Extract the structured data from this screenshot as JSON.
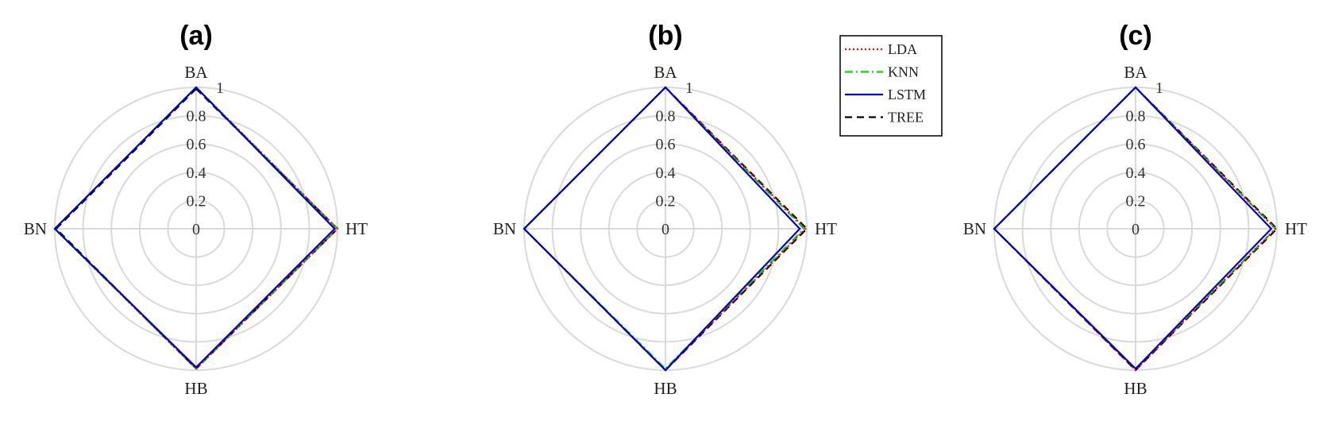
{
  "chart_data": [
    {
      "type": "radar",
      "title": "(a)",
      "axes": [
        "BA",
        "HT",
        "HB",
        "BN"
      ],
      "radial_ticks": [
        "0",
        "0.2",
        "0.4",
        "0.6",
        "0.8",
        "1"
      ],
      "rlim": [
        0,
        1
      ],
      "series": [
        {
          "name": "LDA",
          "values": [
            1.0,
            1.0,
            0.99,
            1.0
          ]
        },
        {
          "name": "KNN",
          "values": [
            1.0,
            1.0,
            0.99,
            1.0
          ]
        },
        {
          "name": "LSTM",
          "values": [
            1.0,
            0.98,
            0.98,
            1.0
          ]
        },
        {
          "name": "TREE",
          "values": [
            0.99,
            1.0,
            0.99,
            0.99
          ]
        }
      ]
    },
    {
      "type": "radar",
      "title": "(b)",
      "axes": [
        "BA",
        "HT",
        "HB",
        "BN"
      ],
      "radial_ticks": [
        "0",
        "0.2",
        "0.4",
        "0.6",
        "0.8",
        "1"
      ],
      "rlim": [
        0,
        1
      ],
      "series": [
        {
          "name": "LDA",
          "values": [
            1.0,
            0.99,
            1.0,
            1.0
          ]
        },
        {
          "name": "KNN",
          "values": [
            1.0,
            0.98,
            0.99,
            1.0
          ]
        },
        {
          "name": "LSTM",
          "values": [
            1.0,
            0.95,
            1.0,
            1.0
          ]
        },
        {
          "name": "TREE",
          "values": [
            1.0,
            1.0,
            1.0,
            1.0
          ]
        }
      ]
    },
    {
      "type": "radar",
      "title": "(c)",
      "axes": [
        "BA",
        "HT",
        "HB",
        "BN"
      ],
      "radial_ticks": [
        "0",
        "0.2",
        "0.4",
        "0.6",
        "0.8",
        "1"
      ],
      "rlim": [
        0,
        1
      ],
      "series": [
        {
          "name": "LDA",
          "values": [
            1.0,
            0.99,
            1.0,
            1.0
          ]
        },
        {
          "name": "KNN",
          "values": [
            1.0,
            0.99,
            0.99,
            1.0
          ]
        },
        {
          "name": "LSTM",
          "values": [
            1.0,
            0.96,
            0.99,
            1.0
          ]
        },
        {
          "name": "TREE",
          "values": [
            1.0,
            1.0,
            1.0,
            1.0
          ]
        }
      ]
    }
  ],
  "legend": {
    "placement": "between-b-and-c-top",
    "entries": [
      {
        "name": "LDA",
        "color": "#ff0000",
        "style": "dotted"
      },
      {
        "name": "KNN",
        "color": "#00e000",
        "style": "dashdot"
      },
      {
        "name": "LSTM",
        "color": "#0000cc",
        "style": "solid"
      },
      {
        "name": "TREE",
        "color": "#000000",
        "style": "dashed"
      }
    ]
  },
  "colors": {
    "grid": "#d9d9d9",
    "background": "#ffffff"
  }
}
